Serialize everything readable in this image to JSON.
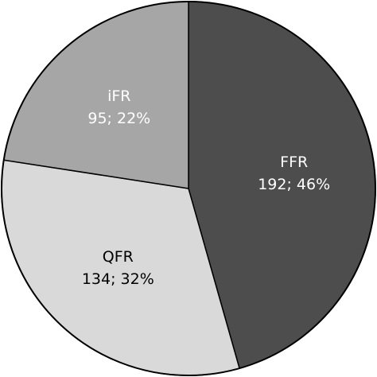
{
  "chart_data": {
    "type": "pie",
    "title": "",
    "slices": [
      {
        "label": "FFR",
        "value": 192,
        "percent": "46%",
        "text": "192; 46%",
        "color": "#4d4d4d",
        "text_color": "#ffffff"
      },
      {
        "label": "QFR",
        "value": 134,
        "percent": "32%",
        "text": "134; 32%",
        "color": "#d9d9d9",
        "text_color": "#000000"
      },
      {
        "label": "iFR",
        "value": 95,
        "percent": "22%",
        "text": "95; 22%",
        "color": "#a6a6a6",
        "text_color": "#ffffff"
      }
    ],
    "start": "12 o'clock",
    "direction": "clockwise"
  }
}
